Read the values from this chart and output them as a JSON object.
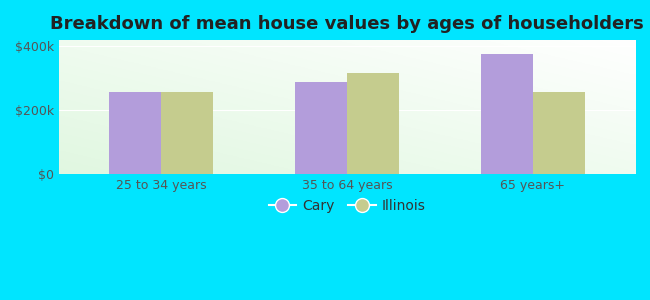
{
  "title": "Breakdown of mean house values by ages of householders",
  "categories": [
    "25 to 34 years",
    "35 to 64 years",
    "65 years+"
  ],
  "cary_values": [
    258000,
    290000,
    375000
  ],
  "illinois_values": [
    256000,
    318000,
    258000
  ],
  "cary_color": "#b39ddb",
  "illinois_color": "#c5cc8e",
  "background_color": "#00e5ff",
  "ylim": [
    0,
    420000
  ],
  "yticks": [
    0,
    200000,
    400000
  ],
  "ytick_labels": [
    "$0",
    "$200k",
    "$400k"
  ],
  "legend_labels": [
    "Cary",
    "Illinois"
  ],
  "bar_width": 0.28,
  "title_fontsize": 13,
  "tick_fontsize": 9,
  "legend_fontsize": 10
}
